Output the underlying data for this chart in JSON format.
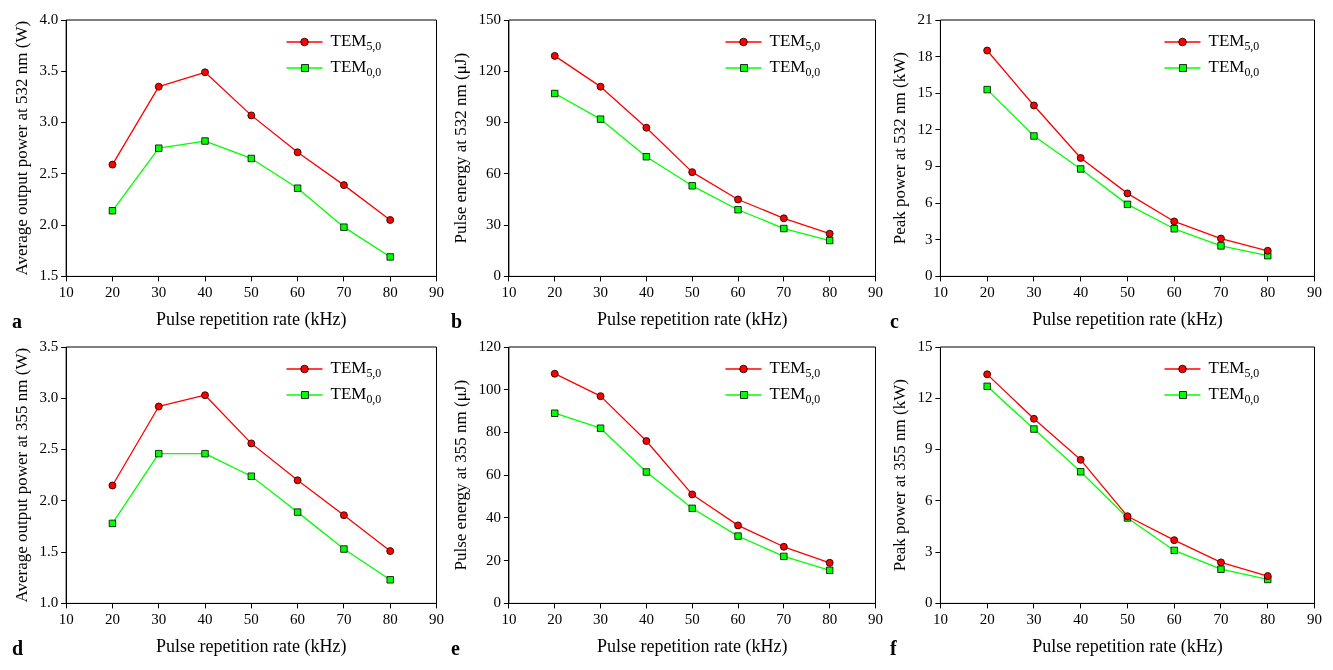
{
  "chart_data": [
    {
      "type": "line",
      "xlabel": "Pulse repetition rate (kHz)",
      "ylabel": "Average output power at 532 nm (W)",
      "annotations": [
        "a"
      ],
      "x": [
        20,
        30,
        40,
        50,
        60,
        70,
        80
      ],
      "xlim": [
        10,
        90
      ],
      "xticks": [
        10,
        20,
        30,
        40,
        50,
        60,
        70,
        80,
        90
      ],
      "ylim": [
        1.5,
        4.0
      ],
      "yticks": [
        {
          "value": 1.5,
          "label": "1.5"
        },
        {
          "value": 2.0,
          "label": "2.0"
        },
        {
          "value": 2.5,
          "label": "2.5"
        },
        {
          "value": 3.0,
          "label": "3.0"
        },
        {
          "value": 3.5,
          "label": "3.5"
        },
        {
          "value": 4.0,
          "label": "4.0"
        }
      ],
      "grid": false,
      "legend": "top right",
      "series": [
        {
          "name": "TEM$_{5,0}$",
          "color": "#ff0000",
          "marker": "circle",
          "values": [
            2.59,
            3.35,
            3.49,
            3.07,
            2.71,
            2.39,
            2.05
          ]
        },
        {
          "name": "TEM$_{0,0}$",
          "color": "#00ff00",
          "marker": "square",
          "values": [
            2.14,
            2.75,
            2.82,
            2.65,
            2.36,
            1.98,
            1.69
          ]
        }
      ]
    },
    {
      "type": "line",
      "xlabel": "Pulse repetition rate (kHz)",
      "ylabel": "Pulse energy at 532 nm (μJ)",
      "annotations": [
        "b"
      ],
      "x": [
        20,
        30,
        40,
        50,
        60,
        70,
        80
      ],
      "xlim": [
        10,
        90
      ],
      "xticks": [
        10,
        20,
        30,
        40,
        50,
        60,
        70,
        80,
        90
      ],
      "ylim": [
        0,
        150
      ],
      "yticks": [
        0,
        30,
        60,
        90,
        120,
        150
      ],
      "grid": false,
      "legend": "top right",
      "series": [
        {
          "name": "TEM$_{5,0}$",
          "color": "#ff0000",
          "marker": "circle",
          "values": [
            129,
            111,
            87,
            61,
            45,
            34,
            25
          ]
        },
        {
          "name": "TEM$_{0,0}$",
          "color": "#00ff00",
          "marker": "square",
          "values": [
            107,
            92,
            70,
            53,
            39,
            28,
            21
          ]
        }
      ]
    },
    {
      "type": "line",
      "xlabel": "Pulse repetition rate (kHz)",
      "ylabel": "Peak power at 532 nm (kW)",
      "annotations": [
        "c"
      ],
      "x": [
        20,
        30,
        40,
        50,
        60,
        70,
        80
      ],
      "xlim": [
        10,
        90
      ],
      "xticks": [
        10,
        20,
        30,
        40,
        50,
        60,
        70,
        80,
        90
      ],
      "ylim": [
        0,
        21
      ],
      "yticks": [
        0,
        3,
        6,
        9,
        12,
        15,
        18,
        21
      ],
      "grid": false,
      "legend": "top right",
      "series": [
        {
          "name": "TEM$_{5,0}$",
          "color": "#ff0000",
          "marker": "circle",
          "values": [
            18.5,
            14.0,
            9.7,
            6.8,
            4.5,
            3.1,
            2.1
          ]
        },
        {
          "name": "TEM$_{0,0}$",
          "color": "#00ff00",
          "marker": "square",
          "values": [
            15.3,
            11.5,
            8.8,
            5.9,
            3.9,
            2.5,
            1.7
          ]
        }
      ]
    },
    {
      "type": "line",
      "xlabel": "Pulse repetition rate (kHz)",
      "ylabel": "Average output power at 355 nm (W)",
      "annotations": [
        "d"
      ],
      "x": [
        20,
        30,
        40,
        50,
        60,
        70,
        80
      ],
      "xlim": [
        10,
        90
      ],
      "xticks": [
        10,
        20,
        30,
        40,
        50,
        60,
        70,
        80,
        90
      ],
      "ylim": [
        1.0,
        3.5
      ],
      "yticks": [
        {
          "value": 1.0,
          "label": "1.0"
        },
        {
          "value": 1.5,
          "label": "1.5"
        },
        {
          "value": 2.0,
          "label": "2.0"
        },
        {
          "value": 2.5,
          "label": "2.5"
        },
        {
          "value": 3.0,
          "label": "3.0"
        },
        {
          "value": 3.5,
          "label": "3.5"
        }
      ],
      "grid": false,
      "legend": "top right",
      "series": [
        {
          "name": "TEM$_{5,0}$",
          "color": "#ff0000",
          "marker": "circle",
          "values": [
            2.15,
            2.92,
            3.03,
            2.56,
            2.2,
            1.86,
            1.51
          ]
        },
        {
          "name": "TEM$_{0,0}$",
          "color": "#00ff00",
          "marker": "square",
          "values": [
            1.78,
            2.46,
            2.46,
            2.24,
            1.89,
            1.53,
            1.23
          ]
        }
      ]
    },
    {
      "type": "line",
      "xlabel": "Pulse repetition rate (kHz)",
      "ylabel": "Pulse energy at 355 nm (μJ)",
      "annotations": [
        "e"
      ],
      "x": [
        20,
        30,
        40,
        50,
        60,
        70,
        80
      ],
      "xlim": [
        10,
        90
      ],
      "xticks": [
        10,
        20,
        30,
        40,
        50,
        60,
        70,
        80,
        90
      ],
      "ylim": [
        0,
        120
      ],
      "yticks": [
        0,
        20,
        40,
        60,
        80,
        100,
        120
      ],
      "grid": false,
      "legend": "top right",
      "series": [
        {
          "name": "TEM$_{5,0}$",
          "color": "#ff0000",
          "marker": "circle",
          "values": [
            107.5,
            97,
            76,
            51,
            36.5,
            26.5,
            19
          ]
        },
        {
          "name": "TEM$_{0,0}$",
          "color": "#00ff00",
          "marker": "square",
          "values": [
            89,
            82,
            61.5,
            44.5,
            31.5,
            22,
            15.5
          ]
        }
      ]
    },
    {
      "type": "line",
      "xlabel": "Pulse repetition rate (kHz)",
      "ylabel": "Peak power at 355 nm (kW)",
      "annotations": [
        "f"
      ],
      "x": [
        20,
        30,
        40,
        50,
        60,
        70,
        80
      ],
      "xlim": [
        10,
        90
      ],
      "xticks": [
        10,
        20,
        30,
        40,
        50,
        60,
        70,
        80,
        90
      ],
      "ylim": [
        0,
        15
      ],
      "yticks": [
        0,
        3,
        6,
        9,
        12,
        15
      ],
      "grid": false,
      "legend": "top right",
      "series": [
        {
          "name": "TEM$_{5,0}$",
          "color": "#ff0000",
          "marker": "circle",
          "values": [
            13.4,
            10.8,
            8.4,
            5.1,
            3.7,
            2.4,
            1.6
          ]
        },
        {
          "name": "TEM$_{0,0}$",
          "color": "#00ff00",
          "marker": "square",
          "values": [
            12.7,
            10.2,
            7.7,
            5.0,
            3.1,
            2.0,
            1.4
          ]
        }
      ]
    }
  ]
}
